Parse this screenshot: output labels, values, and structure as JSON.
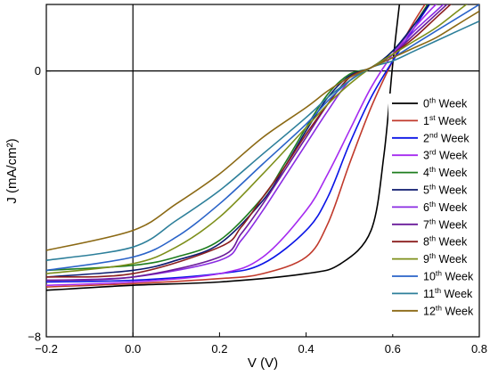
{
  "chart_data": {
    "type": "line",
    "xlabel": "V (V)",
    "ylabel": "J (mA/cm²)",
    "xlim": [
      -0.2,
      0.8
    ],
    "ylim": [
      -8,
      2
    ],
    "xticks": [
      -0.2,
      0.0,
      0.2,
      0.4,
      0.6,
      0.8
    ],
    "xtick_labels": [
      "−0.2",
      "0.0",
      "0.2",
      "0.4",
      "0.6",
      "0.8"
    ],
    "yticks": [
      -8,
      0
    ],
    "ytick_labels": [
      "−8",
      "0"
    ],
    "zero_lines": true,
    "grid": false,
    "legend_position": "lower-right",
    "series": [
      {
        "name": "0th Week",
        "ord": "th",
        "num": "0",
        "color": "#000000",
        "x": [
          -0.2,
          0.0,
          0.2,
          0.4,
          0.48,
          0.55,
          0.58,
          0.6,
          0.62
        ],
        "y": [
          -6.6,
          -6.45,
          -6.35,
          -6.1,
          -5.8,
          -4.8,
          -2.5,
          0.2,
          2.5
        ]
      },
      {
        "name": "1st Week",
        "ord": "st",
        "num": "1",
        "color": "#c0392b",
        "x": [
          -0.2,
          0.0,
          0.2,
          0.3,
          0.4,
          0.45,
          0.5,
          0.55,
          0.6,
          0.65,
          0.7
        ],
        "y": [
          -6.5,
          -6.4,
          -6.25,
          -6.1,
          -5.6,
          -4.6,
          -2.8,
          -1.1,
          0.3,
          1.5,
          2.5
        ]
      },
      {
        "name": "2nd Week",
        "ord": "nd",
        "num": "2",
        "color": "#0a14e6",
        "x": [
          -0.2,
          0.0,
          0.2,
          0.3,
          0.4,
          0.45,
          0.5,
          0.55,
          0.6,
          0.65,
          0.7
        ],
        "y": [
          -6.35,
          -6.3,
          -6.1,
          -5.8,
          -4.8,
          -3.8,
          -2.2,
          -0.8,
          0.3,
          1.3,
          2.3
        ]
      },
      {
        "name": "3rd Week",
        "ord": "rd",
        "num": "3",
        "color": "#a52af0",
        "x": [
          -0.2,
          0.0,
          0.2,
          0.3,
          0.4,
          0.45,
          0.5,
          0.55,
          0.6,
          0.65,
          0.7,
          0.75
        ],
        "y": [
          -6.45,
          -6.35,
          -6.1,
          -5.6,
          -4.2,
          -3.1,
          -1.8,
          -0.5,
          0.5,
          1.3,
          2.0,
          2.5
        ]
      },
      {
        "name": "4th Week",
        "ord": "th",
        "num": "4",
        "color": "#1e7d1e",
        "x": [
          -0.2,
          0.0,
          0.1,
          0.2,
          0.3,
          0.35,
          0.4,
          0.45,
          0.5,
          0.55,
          0.6,
          0.65,
          0.7
        ],
        "y": [
          -6.0,
          -5.85,
          -5.6,
          -5.1,
          -3.8,
          -2.8,
          -1.7,
          -0.7,
          -0.1,
          0.1,
          0.6,
          1.4,
          2.4
        ]
      },
      {
        "name": "5th Week",
        "ord": "th",
        "num": "5",
        "color": "#0b1a6e",
        "x": [
          -0.2,
          0.0,
          0.1,
          0.2,
          0.3,
          0.35,
          0.4,
          0.45,
          0.5,
          0.55,
          0.6,
          0.65,
          0.7
        ],
        "y": [
          -6.2,
          -6.0,
          -5.7,
          -5.2,
          -3.9,
          -2.9,
          -1.8,
          -0.8,
          -0.15,
          0.1,
          0.6,
          1.4,
          2.3
        ]
      },
      {
        "name": "6th Week",
        "ord": "th",
        "num": "6",
        "color": "#8a2be2",
        "x": [
          -0.2,
          0.0,
          0.2,
          0.25,
          0.3,
          0.35,
          0.4,
          0.45,
          0.5,
          0.55,
          0.6,
          0.65,
          0.7,
          0.75
        ],
        "y": [
          -6.3,
          -6.2,
          -5.7,
          -5.1,
          -4.2,
          -3.2,
          -2.2,
          -1.2,
          -0.3,
          0.1,
          0.5,
          1.2,
          1.8,
          2.4
        ]
      },
      {
        "name": "7th Week",
        "ord": "th",
        "num": "7",
        "color": "#6a1b9a",
        "x": [
          -0.2,
          0.0,
          0.2,
          0.25,
          0.3,
          0.35,
          0.4,
          0.45,
          0.5,
          0.55,
          0.6,
          0.65,
          0.7,
          0.75
        ],
        "y": [
          -6.3,
          -6.2,
          -5.6,
          -4.9,
          -4.0,
          -3.0,
          -2.0,
          -1.0,
          -0.2,
          0.1,
          0.5,
          1.1,
          1.7,
          2.3
        ]
      },
      {
        "name": "8th Week",
        "ord": "th",
        "num": "8",
        "color": "#8b1e1e",
        "x": [
          -0.2,
          0.0,
          0.2,
          0.25,
          0.3,
          0.35,
          0.4,
          0.45,
          0.5,
          0.55,
          0.6,
          0.65,
          0.7,
          0.75
        ],
        "y": [
          -6.2,
          -6.1,
          -5.3,
          -4.7,
          -3.8,
          -2.9,
          -1.9,
          -1.0,
          -0.2,
          0.1,
          0.5,
          1.0,
          1.6,
          2.2
        ]
      },
      {
        "name": "9th Week",
        "ord": "th",
        "num": "9",
        "color": "#7d8f1a",
        "x": [
          -0.2,
          0.0,
          0.1,
          0.2,
          0.3,
          0.4,
          0.45,
          0.5,
          0.55,
          0.6,
          0.65,
          0.7,
          0.75,
          0.8
        ],
        "y": [
          -6.1,
          -5.8,
          -5.3,
          -4.4,
          -3.1,
          -1.7,
          -1.0,
          -0.4,
          0.1,
          0.5,
          0.9,
          1.3,
          1.8,
          2.3
        ]
      },
      {
        "name": "10th Week",
        "ord": "th",
        "num": "10",
        "color": "#2a63c8",
        "x": [
          -0.2,
          0.0,
          0.1,
          0.2,
          0.3,
          0.4,
          0.45,
          0.5,
          0.55,
          0.6,
          0.65,
          0.7,
          0.75,
          0.8
        ],
        "y": [
          -6.0,
          -5.6,
          -5.0,
          -4.0,
          -2.8,
          -1.6,
          -0.9,
          -0.3,
          0.1,
          0.4,
          0.8,
          1.2,
          1.6,
          2.0
        ]
      },
      {
        "name": "11th Week",
        "ord": "th",
        "num": "11",
        "color": "#2d7f9a",
        "x": [
          -0.2,
          0.0,
          0.1,
          0.2,
          0.3,
          0.4,
          0.45,
          0.5,
          0.55,
          0.6,
          0.65,
          0.7,
          0.75,
          0.8
        ],
        "y": [
          -5.7,
          -5.3,
          -4.5,
          -3.6,
          -2.5,
          -1.4,
          -0.8,
          -0.3,
          0.1,
          0.3,
          0.6,
          0.9,
          1.2,
          1.5
        ]
      },
      {
        "name": "12th Week",
        "ord": "th",
        "num": "12",
        "color": "#8b6914",
        "x": [
          -0.2,
          0.0,
          0.1,
          0.2,
          0.3,
          0.4,
          0.45,
          0.5,
          0.55,
          0.6,
          0.65,
          0.7,
          0.75,
          0.8
        ],
        "y": [
          -5.4,
          -4.8,
          -4.0,
          -3.1,
          -2.0,
          -1.1,
          -0.6,
          -0.2,
          0.1,
          0.4,
          0.7,
          1.0,
          1.4,
          1.8
        ]
      }
    ]
  }
}
